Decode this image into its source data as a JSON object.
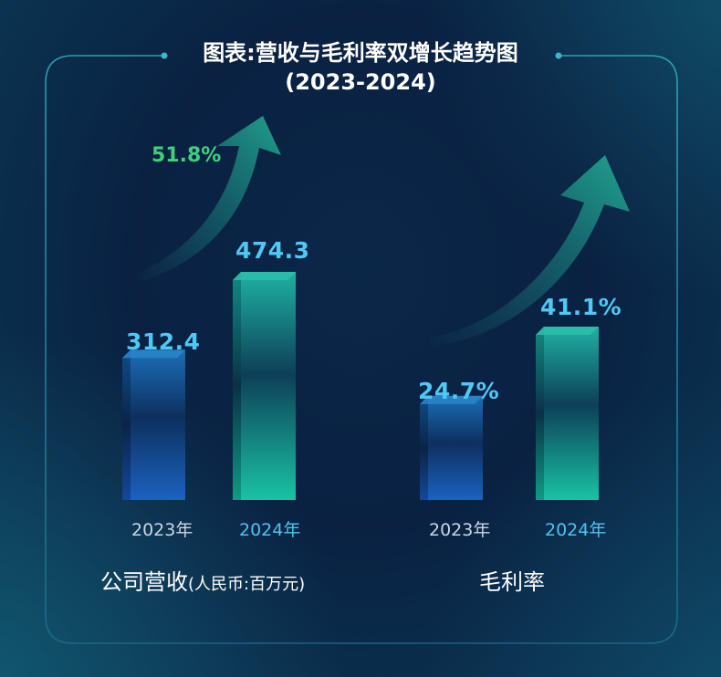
{
  "title": "图表:营收与毛利率双增长趋势图",
  "subtitle": "(2023-2024)",
  "colors": {
    "bar_2023": "#1a5fae",
    "bar_2024": "#17a898",
    "value_label": "#4ec8f5",
    "growth_label": "#3ed17a",
    "arrow": "#1e8a86"
  },
  "chart_data": [
    {
      "type": "bar",
      "categories": [
        "2023年",
        "2024年"
      ],
      "values": [
        312.4,
        474.3
      ],
      "value_labels": [
        "312.4",
        "474.3"
      ],
      "group_label": "公司营收",
      "unit_label": "(人民币:百万元)",
      "growth_label": "51.8%",
      "ylim": [
        0,
        474.3
      ]
    },
    {
      "type": "bar",
      "categories": [
        "2023年",
        "2024年"
      ],
      "values": [
        24.7,
        41.1
      ],
      "value_labels": [
        "24.7%",
        "41.1%"
      ],
      "group_label": "毛利率",
      "ylim": [
        0,
        41.1
      ]
    }
  ]
}
